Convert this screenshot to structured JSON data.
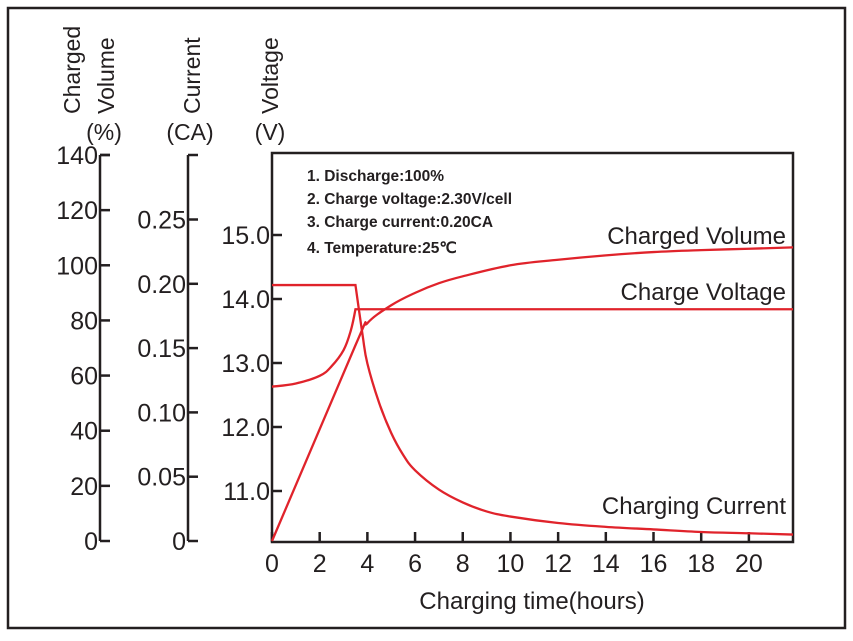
{
  "chart_data": {
    "type": "line",
    "xlabel": "Charging time(hours)",
    "xlim": [
      0,
      21.85
    ],
    "xticks": [
      0,
      2,
      4,
      6,
      8,
      10,
      12,
      14,
      16,
      18,
      20
    ],
    "grid": false,
    "axes": [
      {
        "id": "volume",
        "label": [
          "Charged",
          "Volume"
        ],
        "unit": "(%)",
        "ylim": [
          0,
          140
        ],
        "ticks": [
          "0",
          "20",
          "40",
          "60",
          "80",
          "100",
          "120",
          "140"
        ],
        "tick_values": [
          0,
          20,
          40,
          60,
          80,
          100,
          120,
          140
        ]
      },
      {
        "id": "current",
        "label": [
          "Current"
        ],
        "unit": "(CA)",
        "ylim": [
          0,
          0.29
        ],
        "ticks": [
          "0",
          "0.05",
          "0.10",
          "0.15",
          "0.20",
          "0.25"
        ],
        "tick_values": [
          0,
          0.05,
          0.1,
          0.15,
          0.2,
          0.25
        ]
      },
      {
        "id": "voltage",
        "label": [
          "Voltage"
        ],
        "unit": "(V)",
        "ylim": [
          10.2,
          16.28
        ],
        "ticks": [
          "11.0",
          "12.0",
          "13.0",
          "14.0",
          "15.0"
        ],
        "tick_values": [
          11,
          12,
          13,
          14,
          15
        ]
      }
    ],
    "notes": [
      "1. Discharge:100%",
      "2. Charge voltage:2.30V/cell",
      "3. Charge current:0.20CA",
      "4. Temperature:25℃"
    ],
    "series": [
      {
        "name": "Charged Volume",
        "axis": "volume",
        "x": [
          0,
          3.5,
          4,
          5,
          6,
          7,
          8,
          10,
          12,
          14,
          16,
          18,
          20,
          21.85
        ],
        "y": [
          0,
          71,
          79,
          85.5,
          90,
          93.5,
          96,
          100,
          102,
          103.6,
          104.8,
          105.5,
          106,
          106.5
        ]
      },
      {
        "name": "Charge Voltage",
        "axis": "voltage",
        "x": [
          0,
          1,
          2,
          2.5,
          3,
          3.3,
          3.5,
          5,
          10,
          15,
          20,
          21.85
        ],
        "y": [
          12.63,
          12.68,
          12.8,
          12.95,
          13.2,
          13.5,
          13.84,
          13.84,
          13.84,
          13.84,
          13.84,
          13.84
        ]
      },
      {
        "name": "Charging Current",
        "axis": "current",
        "x": [
          0,
          3.5,
          3.8,
          4,
          4.5,
          5,
          5.5,
          6,
          7,
          8,
          9,
          10,
          12,
          14,
          16,
          18,
          20,
          21.85
        ],
        "y": [
          0.199,
          0.199,
          0.16,
          0.138,
          0.107,
          0.084,
          0.067,
          0.055,
          0.04,
          0.03,
          0.023,
          0.019,
          0.014,
          0.011,
          0.009,
          0.007,
          0.006,
          0.005
        ]
      }
    ],
    "series_color": "#e0232b"
  }
}
